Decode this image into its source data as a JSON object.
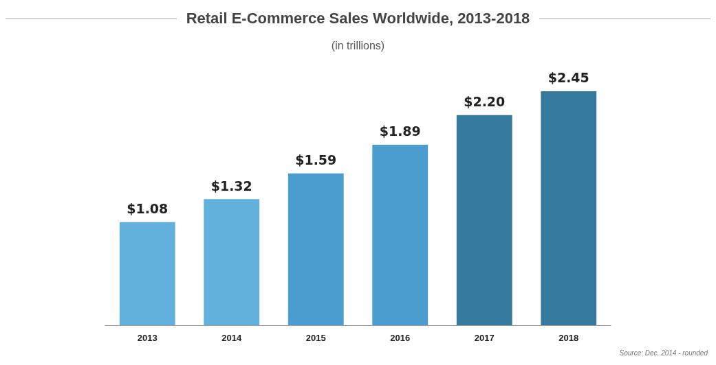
{
  "chart_data": {
    "type": "bar",
    "title": "Retail E-Commerce Sales Worldwide, 2013-2018",
    "subtitle": "(in trillions)",
    "categories": [
      "2013",
      "2014",
      "2015",
      "2016",
      "2017",
      "2018"
    ],
    "values": [
      1.08,
      1.32,
      1.59,
      1.89,
      2.2,
      2.45
    ],
    "value_labels": [
      "$1.08",
      "$1.32",
      "$1.59",
      "$1.89",
      "$2.20",
      "$2.45"
    ],
    "colors": [
      "#62b1dd",
      "#62b1dd",
      "#4a9dce",
      "#4a9dce",
      "#36799f",
      "#36799f"
    ],
    "tick_labels": "x",
    "annotations": [
      "Source: Dec. 2014 - rounded"
    ]
  }
}
